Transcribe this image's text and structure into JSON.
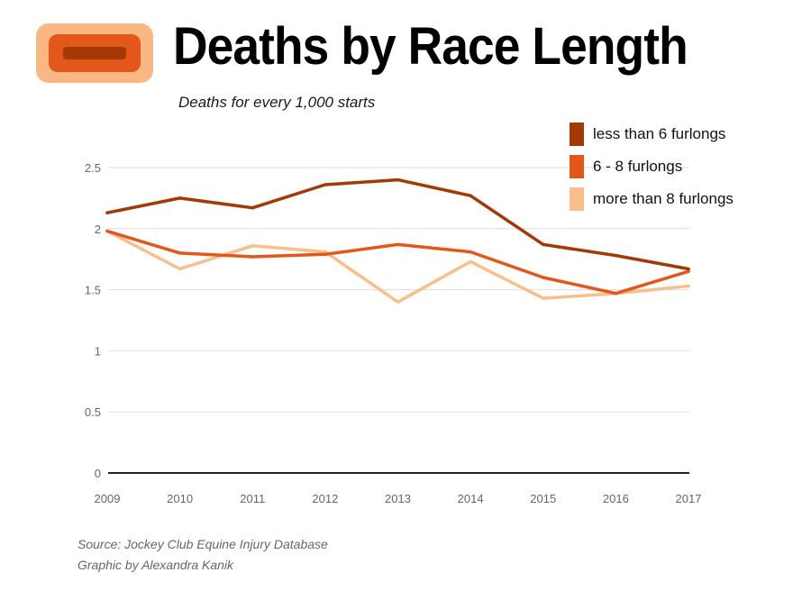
{
  "colors": {
    "logo_outer": "#f9b883",
    "logo_mid": "#e4571a",
    "logo_inner": "#a33a06",
    "grid": "#dddddd",
    "axis": "#222222",
    "tick_text": "#666666"
  },
  "chart_data": {
    "type": "line",
    "title": "Deaths by Race Length",
    "subtitle": "Deaths for every 1,000 starts",
    "xlabel": "",
    "ylabel": "",
    "ylim": [
      0,
      2.5
    ],
    "yticks": [
      "0",
      "0.5",
      "1",
      "1.5",
      "2",
      "2.5"
    ],
    "x": [
      "2009",
      "2010",
      "2011",
      "2012",
      "2013",
      "2014",
      "2015",
      "2016",
      "2017"
    ],
    "grid": true,
    "legend_position": "top-right",
    "series": [
      {
        "name": "less than 6 furlongs",
        "color": "#a33a06",
        "values": [
          2.13,
          2.25,
          2.17,
          2.36,
          2.4,
          2.27,
          1.87,
          1.78,
          1.67
        ]
      },
      {
        "name": "6 - 8 furlongs",
        "color": "#e4571a",
        "values": [
          1.98,
          1.8,
          1.77,
          1.79,
          1.87,
          1.81,
          1.6,
          1.47,
          1.65
        ]
      },
      {
        "name": "more than 8 furlongs",
        "color": "#f9bf8b",
        "values": [
          1.98,
          1.67,
          1.86,
          1.81,
          1.4,
          1.73,
          1.43,
          1.47,
          1.53
        ]
      }
    ]
  },
  "footer": {
    "source": "Source: Jockey Club Equine Injury Database",
    "credit": "Graphic by Alexandra Kanik"
  }
}
